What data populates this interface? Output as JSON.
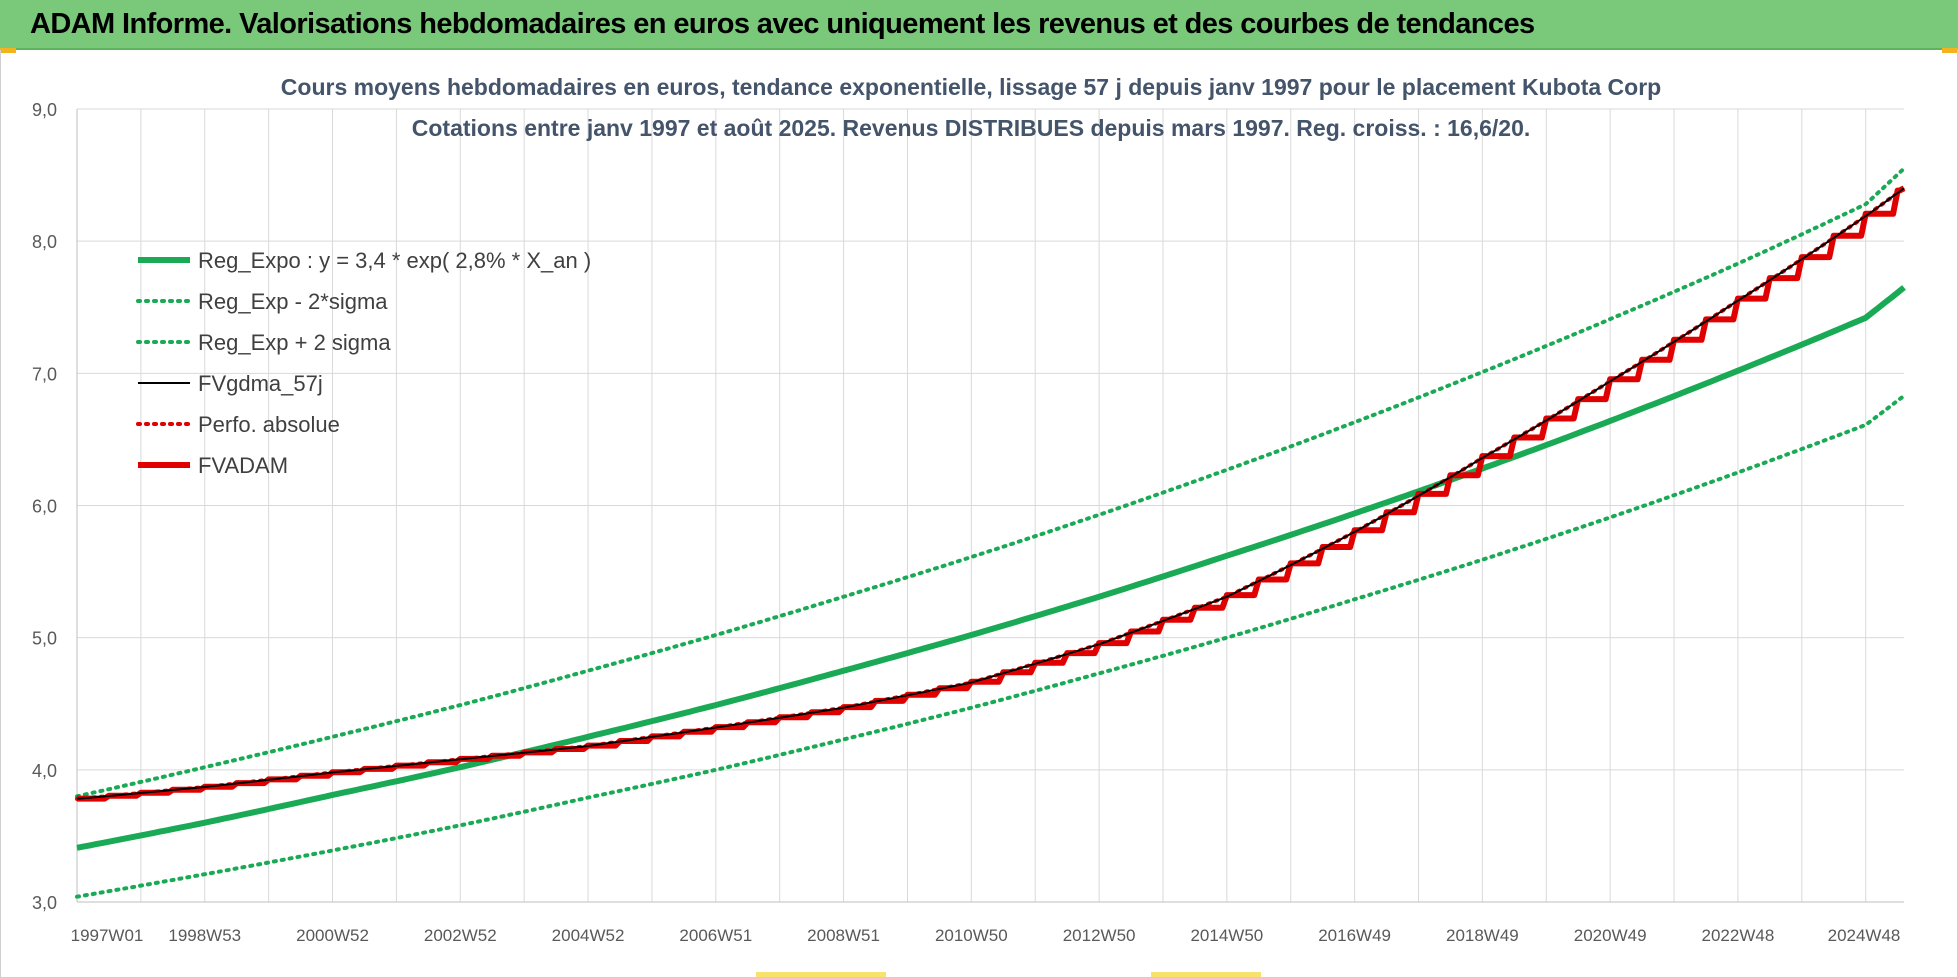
{
  "header": {
    "title": "ADAM Informe. Valorisations hebdomadaires en euros avec uniquement les revenus et des courbes de tendances"
  },
  "colors": {
    "header_bg": "#7ac87a",
    "trend_green": "#1aaa55",
    "adam_red": "#e00000",
    "gdma_black": "#000000",
    "grid": "#d9d9d9",
    "title_text": "#44546a"
  },
  "chart_data": {
    "type": "line",
    "title": "Cours moyens hebdomadaires en euros, tendance exponentielle, lissage 57 j depuis janv 1997  pour le placement Kubota Corp",
    "subtitle": "Cotations entre janv 1997 et août 2025.  Revenus DISTRIBUES depuis mars 1997. Reg. croiss. : 16,6/20.",
    "xlabel": "",
    "ylabel": "",
    "ylim": [
      3.0,
      9.0
    ],
    "yticks": [
      "3,0",
      "4,0",
      "5,0",
      "6,0",
      "7,0",
      "8,0",
      "9,0"
    ],
    "x_range_years": [
      1997.0,
      2025.6
    ],
    "x_tick_labels": [
      {
        "label": "1997W01",
        "year": 1997.0
      },
      {
        "label": "1998W53",
        "year": 1999.0
      },
      {
        "label": "2000W52",
        "year": 2001.0
      },
      {
        "label": "2002W52",
        "year": 2003.0
      },
      {
        "label": "2004W52",
        "year": 2005.0
      },
      {
        "label": "2006W51",
        "year": 2007.0
      },
      {
        "label": "2008W51",
        "year": 2009.0
      },
      {
        "label": "2010W50",
        "year": 2011.0
      },
      {
        "label": "2012W50",
        "year": 2013.0
      },
      {
        "label": "2014W50",
        "year": 2015.0
      },
      {
        "label": "2016W49",
        "year": 2017.0
      },
      {
        "label": "2018W49",
        "year": 2019.0
      },
      {
        "label": "2020W49",
        "year": 2021.0
      },
      {
        "label": "2022W48",
        "year": 2023.0
      },
      {
        "label": "2024W48",
        "year": 2025.0
      }
    ],
    "grid": true,
    "legend_position": "top-left",
    "series": [
      {
        "name": "Reg_Expo : y = 3,4 * exp( 2,8% *  X_an )",
        "style": "solid-thick",
        "color": "#1aaa55",
        "x": [
          1997,
          1999,
          2001,
          2003,
          2005,
          2007,
          2009,
          2011,
          2013,
          2015,
          2017,
          2019,
          2021,
          2023,
          2025,
          2025.6
        ],
        "y": [
          3.41,
          3.6,
          3.81,
          4.02,
          4.25,
          4.49,
          4.75,
          5.02,
          5.31,
          5.62,
          5.94,
          6.28,
          6.64,
          7.02,
          7.42,
          7.65
        ]
      },
      {
        "name": "Reg_Exp - 2*sigma",
        "style": "dotted",
        "color": "#1aaa55",
        "x": [
          1997,
          1999,
          2001,
          2003,
          2005,
          2007,
          2009,
          2011,
          2013,
          2015,
          2017,
          2019,
          2021,
          2023,
          2025,
          2025.6
        ],
        "y": [
          3.04,
          3.21,
          3.39,
          3.58,
          3.79,
          4.0,
          4.23,
          4.47,
          4.73,
          5.0,
          5.29,
          5.59,
          5.91,
          6.25,
          6.61,
          6.83
        ]
      },
      {
        "name": "Reg_Exp + 2 sigma",
        "style": "dotted",
        "color": "#1aaa55",
        "x": [
          1997,
          1999,
          2001,
          2003,
          2005,
          2007,
          2009,
          2011,
          2013,
          2015,
          2017,
          2019,
          2021,
          2023,
          2025,
          2025.6
        ],
        "y": [
          3.8,
          4.02,
          4.25,
          4.49,
          4.75,
          5.02,
          5.31,
          5.61,
          5.93,
          6.27,
          6.63,
          7.01,
          7.41,
          7.83,
          8.28,
          8.55
        ]
      },
      {
        "name": "FVgdma_57j",
        "style": "solid-thin",
        "color": "#000000",
        "x": [
          1997,
          1999,
          2001,
          2003,
          2005,
          2007,
          2009,
          2011,
          2013,
          2015,
          2017,
          2019,
          2021,
          2023,
          2025,
          2025.6
        ],
        "y": [
          3.78,
          3.87,
          3.98,
          4.08,
          4.18,
          4.32,
          4.47,
          4.66,
          4.95,
          5.31,
          5.8,
          6.36,
          6.94,
          7.55,
          8.19,
          8.4
        ]
      },
      {
        "name": "Perfo. absolue",
        "style": "dotted",
        "color": "#e00000",
        "x": [
          1997,
          1999,
          2001,
          2003,
          2005,
          2007,
          2009,
          2011,
          2013,
          2015,
          2017,
          2019,
          2021,
          2023,
          2025,
          2025.6
        ],
        "y": [
          3.78,
          3.87,
          3.98,
          4.08,
          4.18,
          4.32,
          4.47,
          4.66,
          4.95,
          5.31,
          5.8,
          6.36,
          6.94,
          7.55,
          8.19,
          8.4
        ]
      },
      {
        "name": "FVADAM",
        "style": "stepped-thick",
        "color": "#e00000",
        "x": [
          1997,
          1999,
          2001,
          2003,
          2005,
          2007,
          2009,
          2011,
          2013,
          2015,
          2017,
          2019,
          2021,
          2023,
          2025,
          2025.6
        ],
        "y": [
          3.78,
          3.87,
          3.98,
          4.08,
          4.18,
          4.32,
          4.47,
          4.66,
          4.95,
          5.31,
          5.8,
          6.36,
          6.94,
          7.55,
          8.19,
          8.4
        ]
      }
    ]
  }
}
